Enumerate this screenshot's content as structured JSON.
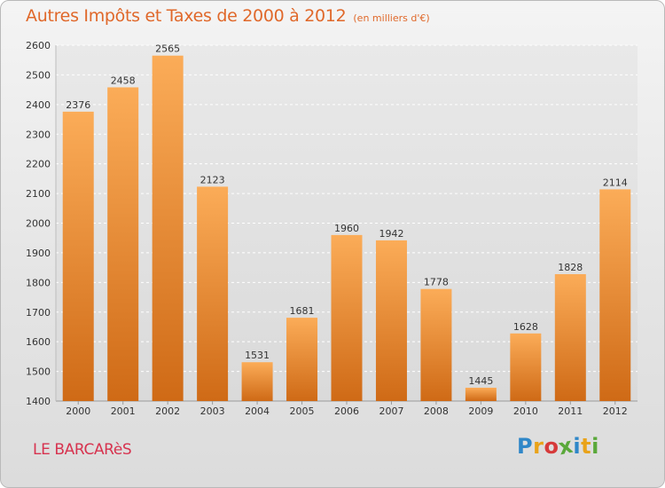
{
  "header": {
    "title": "Autres Impôts et Taxes de 2000 à 2012",
    "subtitle": "(en milliers d'€)"
  },
  "footer": {
    "place": "LE BARCARèS",
    "logo": {
      "letters": [
        "P",
        "r",
        "o",
        "x",
        "i",
        "t",
        "i"
      ],
      "colors": [
        "#2f87c8",
        "#e9a31a",
        "#d63a3a",
        "#5aa83a",
        "#2f87c8",
        "#e9a31a",
        "#5aa83a"
      ]
    }
  },
  "chart_data": {
    "type": "bar",
    "title": "Autres Impôts et Taxes de 2000 à 2012",
    "subtitle": "(en milliers d'€)",
    "categories": [
      "2000",
      "2001",
      "2002",
      "2003",
      "2004",
      "2005",
      "2006",
      "2007",
      "2008",
      "2009",
      "2010",
      "2011",
      "2012"
    ],
    "values": [
      2376,
      2458,
      2565,
      2123,
      1531,
      1681,
      1960,
      1942,
      1778,
      1445,
      1628,
      1828,
      2114
    ],
    "data_labels": [
      "2376",
      "2458",
      "2565",
      "2123",
      "1531",
      "1681",
      "1960",
      "1942",
      "1778",
      "1445",
      "1628",
      "1828",
      "2114"
    ],
    "ylim": [
      1400,
      2600
    ],
    "yticks": [
      "1400",
      "1500",
      "1600",
      "1700",
      "1800",
      "1900",
      "2000",
      "2100",
      "2200",
      "2300",
      "2400",
      "2500",
      "2600"
    ],
    "grid": true,
    "colors": {
      "bar_light": "#fbac58",
      "bar_dark": "#cf6a16",
      "grid": "#ffffff",
      "axis_text": "#333333"
    }
  }
}
